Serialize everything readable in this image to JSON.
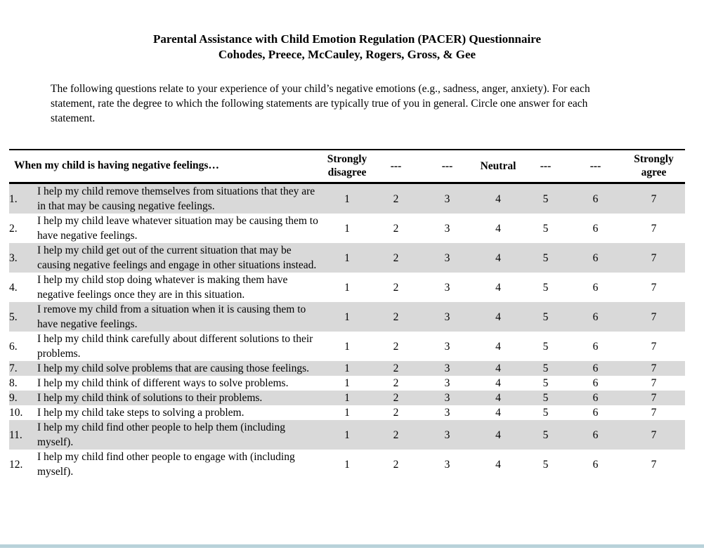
{
  "header": {
    "title": "Parental Assistance with Child Emotion Regulation (PACER) Questionnaire",
    "authors": "Cohodes, Preece, McCauley, Rogers, Gross, & Gee",
    "instructions": "The following questions relate to your experience of your child’s negative emotions (e.g., sadness, anger, anxiety). For each statement, rate the degree to which the following statements are typically true of you in general. Circle one answer for each statement."
  },
  "table": {
    "statement_header": "When my child is having negative feelings…",
    "scale_headers": [
      "Strongly disagree",
      "---",
      "---",
      "Neutral",
      "---",
      "---",
      "Strongly agree"
    ],
    "scale_values": [
      "1",
      "2",
      "3",
      "4",
      "5",
      "6",
      "7"
    ],
    "rows": [
      {
        "num": "1.",
        "statement": "I help my child remove themselves from situations that they are in that may be causing negative feelings.",
        "shaded": true
      },
      {
        "num": "2.",
        "statement": "I help my child leave whatever situation may be causing them to have negative feelings.",
        "shaded": false
      },
      {
        "num": "3.",
        "statement": "I help my child get out of the current situation that may be causing negative feelings and engage in other situations instead.",
        "shaded": true
      },
      {
        "num": "4.",
        "statement": "I help my child stop doing whatever is making them have negative feelings once they are in this situation.",
        "shaded": false
      },
      {
        "num": "5.",
        "statement": "I remove my child from a situation when it is causing them to have negative feelings.",
        "shaded": true
      },
      {
        "num": "6.",
        "statement": "I help my child think carefully about different solutions to their problems.",
        "shaded": false
      },
      {
        "num": "7.",
        "statement": "I help my child solve problems that are causing those feelings.",
        "shaded": true
      },
      {
        "num": "8.",
        "statement": "I help my child think of different ways to solve problems.",
        "shaded": false
      },
      {
        "num": "9.",
        "statement": "I help my child think of solutions to their problems.",
        "shaded": true
      },
      {
        "num": "10.",
        "statement": "I help my child take steps to solving a problem.",
        "shaded": false
      },
      {
        "num": "11.",
        "statement": "I help my child find other people to help them (including myself).",
        "shaded": true
      },
      {
        "num": "12.",
        "statement": "I help my child find other people to engage with (including myself).",
        "shaded": false
      }
    ]
  },
  "colors": {
    "row_shade": "#d9d9d9",
    "bottom_bar": "#b8d2da",
    "text": "#000000"
  }
}
